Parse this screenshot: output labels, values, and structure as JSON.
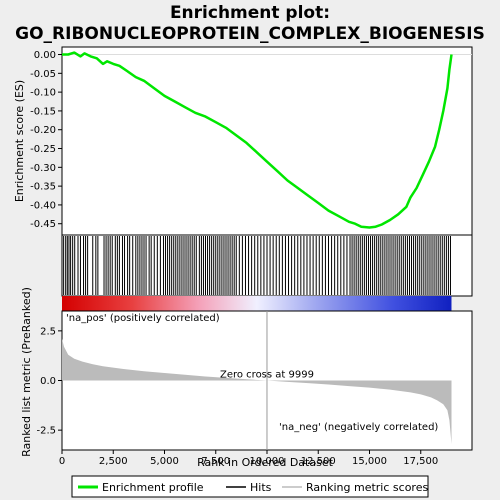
{
  "chart_data": {
    "type": "line",
    "title_line1": "Enrichment plot:",
    "title_line2": "GO_RIBONUCLEOPROTEIN_COMPLEX_BIOGENESIS",
    "es_panel": {
      "ylabel": "Enrichment score (ES)",
      "ylim": [
        -0.48,
        0.02
      ],
      "yticks": [
        0.0,
        -0.05,
        -0.1,
        -0.15,
        -0.2,
        -0.25,
        -0.3,
        -0.35,
        -0.4,
        -0.45
      ],
      "ytick_labels": [
        "0.00",
        "-0.05",
        "-0.10",
        "-0.15",
        "-0.20",
        "-0.25",
        "-0.30",
        "-0.35",
        "-0.40",
        "-0.45"
      ],
      "line_color": "#00e600",
      "series": [
        {
          "x": [
            0,
            300,
            600,
            900,
            1100,
            1400,
            1700,
            2000,
            2200,
            2500,
            2800,
            3200,
            3600,
            4000,
            4500,
            5000,
            5500,
            6000,
            6500,
            7000,
            7500,
            8000,
            8500,
            9000,
            9500,
            10000,
            10500,
            11000,
            11500,
            12000,
            12500,
            13000,
            13500,
            14000,
            14300,
            14600,
            15000,
            15300,
            15600,
            16000,
            16400,
            16800,
            17000,
            17300,
            17600,
            17900,
            18200,
            18400,
            18600,
            18800,
            18900,
            18999
          ],
          "y": [
            0.0,
            0.0,
            0.005,
            -0.005,
            0.003,
            -0.005,
            -0.01,
            -0.025,
            -0.018,
            -0.025,
            -0.03,
            -0.045,
            -0.06,
            -0.07,
            -0.09,
            -0.11,
            -0.125,
            -0.14,
            -0.155,
            -0.165,
            -0.18,
            -0.195,
            -0.215,
            -0.235,
            -0.26,
            -0.285,
            -0.31,
            -0.335,
            -0.355,
            -0.375,
            -0.395,
            -0.415,
            -0.43,
            -0.445,
            -0.45,
            -0.458,
            -0.46,
            -0.458,
            -0.452,
            -0.44,
            -0.425,
            -0.405,
            -0.38,
            -0.355,
            -0.32,
            -0.285,
            -0.245,
            -0.2,
            -0.15,
            -0.09,
            -0.04,
            0.0
          ]
        }
      ]
    },
    "hits_panel": {
      "hit_ranks": [
        80,
        180,
        260,
        340,
        420,
        520,
        620,
        780,
        900,
        1050,
        1150,
        1250,
        1500,
        1650,
        1750,
        2050,
        2150,
        2250,
        2350,
        2450,
        2600,
        2700,
        2800,
        2950,
        3050,
        3200,
        3300,
        3450,
        3600,
        3700,
        3800,
        3900,
        4000,
        4100,
        4250,
        4350,
        4500,
        4650,
        4800,
        4950,
        5050,
        5150,
        5250,
        5350,
        5450,
        5550,
        5650,
        5750,
        5850,
        5950,
        6050,
        6150,
        6250,
        6350,
        6450,
        6550,
        6700,
        6800,
        6900,
        7000,
        7100,
        7200,
        7300,
        7400,
        7500,
        7600,
        7700,
        7800,
        7900,
        8000,
        8100,
        8200,
        8300,
        8400,
        8500,
        8650,
        8800,
        8950,
        9100,
        9250,
        9400,
        9550,
        9700,
        9850,
        10000,
        10150,
        10300,
        10450,
        10600,
        10750,
        10900,
        11050,
        11200,
        11350,
        11500,
        11650,
        11800,
        11950,
        12100,
        12250,
        12400,
        12550,
        12700,
        12850,
        13000,
        13150,
        13300,
        13450,
        13600,
        13750,
        13900,
        14050,
        14150,
        14250,
        14350,
        14450,
        14550,
        14650,
        14750,
        14850,
        14950,
        15050,
        15150,
        15250,
        15350,
        15450,
        15550,
        15650,
        15750,
        15850,
        15950,
        16050,
        16150,
        16250,
        16350,
        16450,
        16550,
        16650,
        16750,
        16850,
        16950,
        17050,
        17150,
        17250,
        17350,
        17450,
        17550,
        17650,
        17750,
        17850,
        17950,
        18050,
        18150,
        18250,
        18350,
        18450,
        18550,
        18650,
        18750,
        18850,
        18950
      ]
    },
    "metric_panel": {
      "ylabel": "Ranked list metric (PreRanked)",
      "xlabel": "Rank in Ordered Dataset",
      "ylim": [
        -3.5,
        3.5
      ],
      "yticks": [
        2.5,
        0.0,
        -2.5
      ],
      "ytick_labels": [
        "2.5",
        "0.0",
        "-2.5"
      ],
      "xlim": [
        0,
        20000
      ],
      "xticks": [
        0,
        2500,
        5000,
        7500,
        10000,
        12500,
        15000,
        17500
      ],
      "xtick_labels": [
        "0",
        "2,500",
        "5,000",
        "7,500",
        "10,000",
        "12,500",
        "15,000",
        "17,500"
      ],
      "series": [
        {
          "x": [
            0,
            100,
            300,
            600,
            1000,
            1500,
            2000,
            3000,
            4000,
            5000,
            6000,
            7000,
            8000,
            9000,
            9999,
            11000,
            12000,
            13000,
            14000,
            15000,
            16000,
            17000,
            17500,
            18000,
            18300,
            18600,
            18800,
            18900,
            18999
          ],
          "y": [
            2.1,
            1.7,
            1.3,
            1.1,
            0.95,
            0.82,
            0.72,
            0.58,
            0.47,
            0.38,
            0.29,
            0.2,
            0.13,
            0.06,
            0.0,
            -0.07,
            -0.13,
            -0.2,
            -0.28,
            -0.36,
            -0.46,
            -0.6,
            -0.7,
            -0.85,
            -1.0,
            -1.2,
            -1.5,
            -2.0,
            -3.2
          ]
        }
      ],
      "fill_color": "#bbbbbb",
      "zero_cross_label": "Zero cross at 9999",
      "pos_label": "'na_pos' (positively correlated)",
      "neg_label": "'na_neg' (negatively correlated)",
      "pos_color": "#cc0000",
      "neg_color": "#0000cc"
    },
    "legend": {
      "items": [
        {
          "label": "Enrichment profile",
          "color": "#00e600"
        },
        {
          "label": "Hits",
          "color": "#000000"
        },
        {
          "label": "Ranking metric scores",
          "color": "#bbbbbb"
        }
      ],
      "placement": "bottom"
    }
  }
}
